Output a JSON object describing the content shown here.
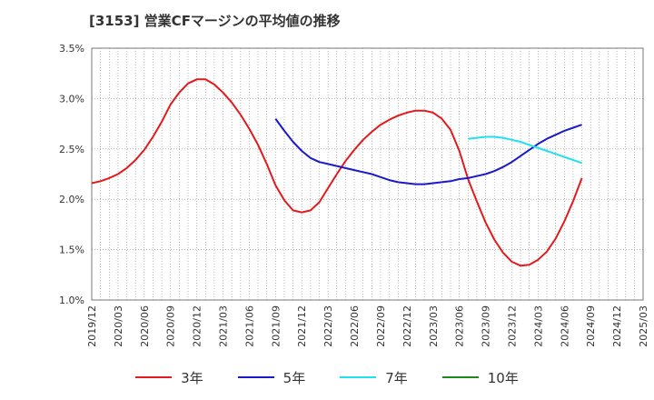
{
  "chart_data": {
    "type": "line",
    "title": "[3153]  営業CFマージンの平均値の推移",
    "xlabel": "",
    "ylabel": "",
    "ylim": [
      1.0,
      3.5
    ],
    "y_ticks": [
      "1.0%",
      "1.5%",
      "2.0%",
      "2.5%",
      "3.0%",
      "3.5%"
    ],
    "x_ticks": [
      "2019/12",
      "2020/03",
      "2020/06",
      "2020/09",
      "2020/12",
      "2021/03",
      "2021/06",
      "2021/09",
      "2021/12",
      "2022/03",
      "2022/06",
      "2022/09",
      "2022/12",
      "2023/03",
      "2023/06",
      "2023/09",
      "2023/12",
      "2024/03",
      "2024/06",
      "2024/09",
      "2024/12",
      "2025/03"
    ],
    "grid": true,
    "legend_position": "bottom",
    "series": [
      {
        "name": "3年",
        "color": "#e31a1c",
        "points": [
          [
            "2019/12",
            2.16
          ],
          [
            "2020/01",
            2.18
          ],
          [
            "2020/02",
            2.21
          ],
          [
            "2020/03",
            2.25
          ],
          [
            "2020/04",
            2.31
          ],
          [
            "2020/05",
            2.39
          ],
          [
            "2020/06",
            2.49
          ],
          [
            "2020/07",
            2.62
          ],
          [
            "2020/08",
            2.77
          ],
          [
            "2020/09",
            2.94
          ],
          [
            "2020/10",
            3.06
          ],
          [
            "2020/11",
            3.15
          ],
          [
            "2020/12",
            3.19
          ],
          [
            "2021/01",
            3.19
          ],
          [
            "2021/02",
            3.14
          ],
          [
            "2021/03",
            3.06
          ],
          [
            "2021/04",
            2.96
          ],
          [
            "2021/05",
            2.84
          ],
          [
            "2021/06",
            2.7
          ],
          [
            "2021/07",
            2.54
          ],
          [
            "2021/08",
            2.35
          ],
          [
            "2021/09",
            2.14
          ],
          [
            "2021/10",
            1.99
          ],
          [
            "2021/11",
            1.89
          ],
          [
            "2021/12",
            1.87
          ],
          [
            "2022/01",
            1.89
          ],
          [
            "2022/02",
            1.97
          ],
          [
            "2022/03",
            2.11
          ],
          [
            "2022/04",
            2.25
          ],
          [
            "2022/05",
            2.38
          ],
          [
            "2022/06",
            2.49
          ],
          [
            "2022/07",
            2.59
          ],
          [
            "2022/08",
            2.67
          ],
          [
            "2022/09",
            2.74
          ],
          [
            "2022/10",
            2.79
          ],
          [
            "2022/11",
            2.83
          ],
          [
            "2022/12",
            2.86
          ],
          [
            "2023/01",
            2.88
          ],
          [
            "2023/02",
            2.88
          ],
          [
            "2023/03",
            2.86
          ],
          [
            "2023/04",
            2.8
          ],
          [
            "2023/05",
            2.69
          ],
          [
            "2023/06",
            2.48
          ],
          [
            "2023/07",
            2.2
          ],
          [
            "2023/08",
            1.98
          ],
          [
            "2023/09",
            1.77
          ],
          [
            "2023/10",
            1.6
          ],
          [
            "2023/11",
            1.47
          ],
          [
            "2023/12",
            1.38
          ],
          [
            "2024/01",
            1.34
          ],
          [
            "2024/02",
            1.35
          ],
          [
            "2024/03",
            1.4
          ],
          [
            "2024/04",
            1.48
          ],
          [
            "2024/05",
            1.61
          ],
          [
            "2024/06",
            1.78
          ],
          [
            "2024/07",
            1.98
          ],
          [
            "2024/08",
            2.21
          ]
        ]
      },
      {
        "name": "5年",
        "color": "#1a1acc",
        "points": [
          [
            "2021/09",
            2.8
          ],
          [
            "2021/10",
            2.68
          ],
          [
            "2021/11",
            2.57
          ],
          [
            "2021/12",
            2.48
          ],
          [
            "2022/01",
            2.41
          ],
          [
            "2022/02",
            2.37
          ],
          [
            "2022/03",
            2.35
          ],
          [
            "2022/04",
            2.33
          ],
          [
            "2022/05",
            2.31
          ],
          [
            "2022/06",
            2.29
          ],
          [
            "2022/07",
            2.27
          ],
          [
            "2022/08",
            2.25
          ],
          [
            "2022/09",
            2.22
          ],
          [
            "2022/10",
            2.19
          ],
          [
            "2022/11",
            2.17
          ],
          [
            "2022/12",
            2.16
          ],
          [
            "2023/01",
            2.15
          ],
          [
            "2023/02",
            2.15
          ],
          [
            "2023/03",
            2.16
          ],
          [
            "2023/04",
            2.17
          ],
          [
            "2023/05",
            2.18
          ],
          [
            "2023/06",
            2.2
          ],
          [
            "2023/07",
            2.21
          ],
          [
            "2023/08",
            2.23
          ],
          [
            "2023/09",
            2.25
          ],
          [
            "2023/10",
            2.28
          ],
          [
            "2023/11",
            2.32
          ],
          [
            "2023/12",
            2.37
          ],
          [
            "2024/01",
            2.43
          ],
          [
            "2024/02",
            2.49
          ],
          [
            "2024/03",
            2.55
          ],
          [
            "2024/04",
            2.6
          ],
          [
            "2024/05",
            2.64
          ],
          [
            "2024/06",
            2.68
          ],
          [
            "2024/07",
            2.71
          ],
          [
            "2024/08",
            2.74
          ]
        ]
      },
      {
        "name": "7年",
        "color": "#22e0f0",
        "points": [
          [
            "2023/07",
            2.6
          ],
          [
            "2023/08",
            2.61
          ],
          [
            "2023/09",
            2.62
          ],
          [
            "2023/10",
            2.62
          ],
          [
            "2023/11",
            2.61
          ],
          [
            "2023/12",
            2.59
          ],
          [
            "2024/01",
            2.57
          ],
          [
            "2024/02",
            2.54
          ],
          [
            "2024/03",
            2.51
          ],
          [
            "2024/04",
            2.48
          ],
          [
            "2024/05",
            2.45
          ],
          [
            "2024/06",
            2.42
          ],
          [
            "2024/07",
            2.39
          ],
          [
            "2024/08",
            2.36
          ]
        ]
      },
      {
        "name": "10年",
        "color": "#1a8a1a",
        "points": []
      }
    ]
  }
}
